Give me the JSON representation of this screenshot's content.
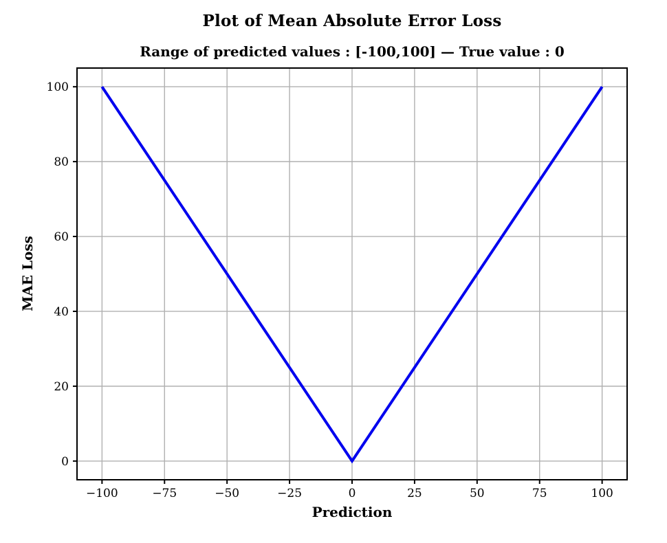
{
  "chart_data": {
    "type": "line",
    "title": "Plot of Mean Absolute Error Loss",
    "subtitle": "Range of predicted values : [-100,100] — True value : 0",
    "xlabel": "Prediction",
    "ylabel": "MAE Loss",
    "xlim": [
      -110,
      110
    ],
    "ylim": [
      -5,
      105
    ],
    "x_ticks": [
      -100,
      -75,
      -50,
      -25,
      0,
      25,
      50,
      75,
      100
    ],
    "x_tick_labels": [
      "−100",
      "−75",
      "−50",
      "−25",
      "0",
      "25",
      "50",
      "75",
      "100"
    ],
    "y_ticks": [
      0,
      20,
      40,
      60,
      80,
      100
    ],
    "y_tick_labels": [
      "0",
      "20",
      "40",
      "60",
      "80",
      "100"
    ],
    "grid": true,
    "legend": "none",
    "colors": {
      "line": "#0000ee",
      "grid": "#b0b0b0",
      "spine": "#000000",
      "background": "#ffffff"
    },
    "series": [
      {
        "name": "MAE loss",
        "x": [
          -100,
          0,
          100
        ],
        "y": [
          100,
          0,
          100
        ]
      }
    ]
  }
}
